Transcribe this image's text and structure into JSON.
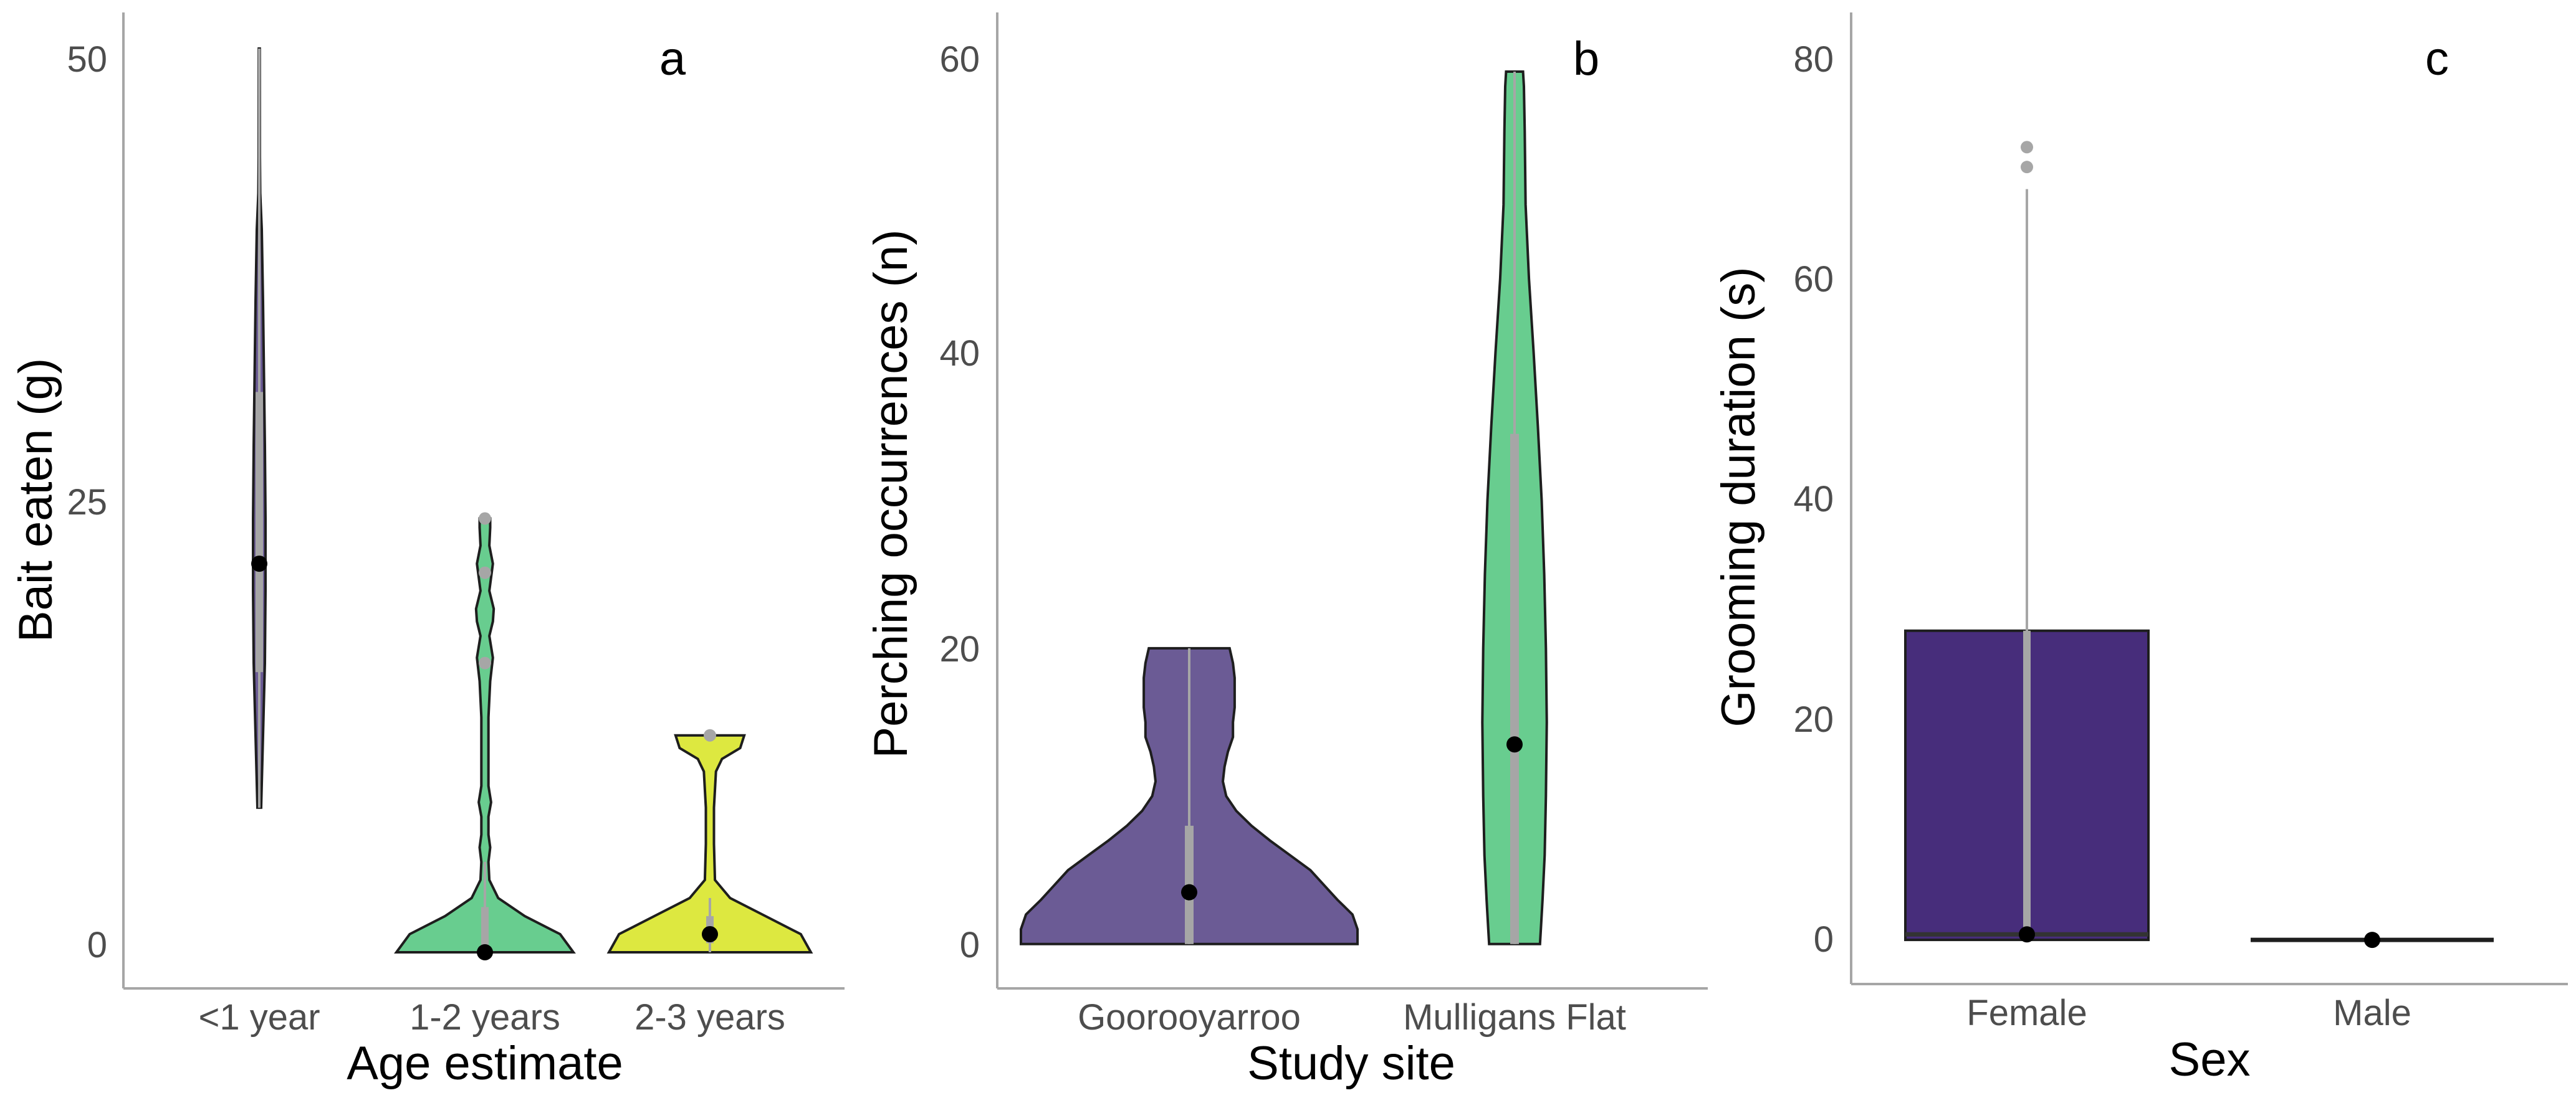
{
  "chart_data": [
    {
      "type": "violin",
      "panel_label": "a",
      "xlabel": "Age estimate",
      "ylabel": "Bait eaten (g)",
      "ylim": [
        -2,
        52
      ],
      "yticks": [
        0,
        25,
        50
      ],
      "categories": [
        "<1 year",
        "1-2 years",
        "2-3 years"
      ],
      "colors": [
        "#6b5b95",
        "#68cd8f",
        "#dde840"
      ],
      "groups": [
        {
          "category": "<1 year",
          "density": [
            [
              8,
              0.3
            ],
            [
              12,
              0.6
            ],
            [
              16,
              0.9
            ],
            [
              20,
              1.0
            ],
            [
              24,
              1.0
            ],
            [
              28,
              0.9
            ],
            [
              32,
              0.75
            ],
            [
              36,
              0.6
            ],
            [
              38,
              0.5
            ],
            [
              40,
              0.4
            ],
            [
              42,
              0.15
            ],
            [
              44,
              0.1
            ],
            [
              50,
              0.08
            ]
          ],
          "box": {
            "q1": 15.5,
            "q3": 31,
            "wlo": 8,
            "whi": 50
          },
          "outliers": [],
          "mean": 21.5
        },
        {
          "category": "1-2 years",
          "density": [
            [
              0,
              1.0
            ],
            [
              1,
              0.85
            ],
            [
              2,
              0.45
            ],
            [
              3,
              0.15
            ],
            [
              4,
              0.05
            ],
            [
              5,
              0.04
            ],
            [
              5.8,
              0.06
            ],
            [
              6.5,
              0.04
            ],
            [
              7.5,
              0.04
            ],
            [
              8.3,
              0.07
            ],
            [
              9.2,
              0.04
            ],
            [
              10,
              0.04
            ],
            [
              11,
              0.04
            ],
            [
              13,
              0.04
            ],
            [
              14,
              0.05
            ],
            [
              15,
              0.06
            ],
            [
              16.3,
              0.09
            ],
            [
              17.5,
              0.05
            ],
            [
              18.3,
              0.09
            ],
            [
              19,
              0.1
            ],
            [
              20,
              0.05
            ],
            [
              21.5,
              0.09
            ],
            [
              22.5,
              0.05
            ],
            [
              23.5,
              0.06
            ],
            [
              24,
              0.06
            ]
          ],
          "box": {
            "q1": 0,
            "q3": 2.5,
            "wlo": 0,
            "whi": 5
          },
          "outliers": [
            24,
            16,
            21
          ],
          "mean": 0
        },
        {
          "category": "2-3 years",
          "density": [
            [
              0,
              1.0
            ],
            [
              1,
              0.9
            ],
            [
              2,
              0.55
            ],
            [
              3,
              0.2
            ],
            [
              4,
              0.05
            ],
            [
              6,
              0.04
            ],
            [
              8,
              0.04
            ],
            [
              10,
              0.06
            ],
            [
              10.7,
              0.12
            ],
            [
              11.3,
              0.3
            ],
            [
              12,
              0.34
            ]
          ],
          "box": {
            "q1": 0.5,
            "q3": 2,
            "wlo": 0,
            "whi": 3
          },
          "outliers": [
            12
          ],
          "mean": 1
        }
      ]
    },
    {
      "type": "violin",
      "panel_label": "b",
      "xlabel": "Study site",
      "ylabel": "Perching occurrences (n)",
      "ylim": [
        -3,
        63
      ],
      "yticks": [
        0,
        20,
        40,
        60
      ],
      "categories": [
        "Goorooyarroo",
        "Mulligans Flat"
      ],
      "colors": [
        "#6b5b95",
        "#68cd8f"
      ],
      "groups": [
        {
          "category": "Goorooyarroo",
          "density": [
            [
              0,
              1.0
            ],
            [
              1,
              1.0
            ],
            [
              2,
              0.97
            ],
            [
              3,
              0.88
            ],
            [
              4,
              0.8
            ],
            [
              5,
              0.72
            ],
            [
              6,
              0.6
            ],
            [
              7,
              0.48
            ],
            [
              8,
              0.37
            ],
            [
              9,
              0.28
            ],
            [
              10,
              0.22
            ],
            [
              11,
              0.2
            ],
            [
              12,
              0.21
            ],
            [
              13,
              0.23
            ],
            [
              14,
              0.26
            ],
            [
              15,
              0.26
            ],
            [
              16,
              0.27
            ],
            [
              17,
              0.27
            ],
            [
              18,
              0.27
            ],
            [
              19,
              0.26
            ],
            [
              20,
              0.24
            ]
          ],
          "box": {
            "q1": 0,
            "q3": 8,
            "wlo": 0,
            "whi": 20
          },
          "outliers": [],
          "mean": 3.5
        },
        {
          "category": "Mulligans Flat",
          "density": [
            [
              0,
              0.6
            ],
            [
              1,
              0.62
            ],
            [
              3,
              0.66
            ],
            [
              6,
              0.71
            ],
            [
              10,
              0.74
            ],
            [
              15,
              0.76
            ],
            [
              20,
              0.74
            ],
            [
              25,
              0.7
            ],
            [
              30,
              0.64
            ],
            [
              35,
              0.55
            ],
            [
              40,
              0.45
            ],
            [
              45,
              0.34
            ],
            [
              50,
              0.26
            ],
            [
              55,
              0.24
            ],
            [
              58,
              0.22
            ],
            [
              59,
              0.2
            ]
          ],
          "box": {
            "q1": 0,
            "q3": 34.5,
            "wlo": 0,
            "whi": 59
          },
          "outliers": [],
          "mean": 13.5
        }
      ]
    },
    {
      "type": "bar",
      "panel_label": "c",
      "xlabel": "Sex",
      "ylabel": "Grooming duration (s)",
      "ylim": [
        -4,
        84
      ],
      "yticks": [
        0,
        20,
        40,
        60,
        80
      ],
      "categories": [
        "Female",
        "Male"
      ],
      "colors": [
        "#472d7b",
        "#472d7b"
      ],
      "bars": [
        {
          "category": "Female",
          "value": 28,
          "median": 0.5,
          "whisker_high": 68,
          "outliers": [
            70,
            71.8
          ],
          "mean": 0.5
        },
        {
          "category": "Male",
          "value": 0,
          "median": 0,
          "whisker_high": 0,
          "outliers": [],
          "mean": 0
        }
      ]
    }
  ]
}
